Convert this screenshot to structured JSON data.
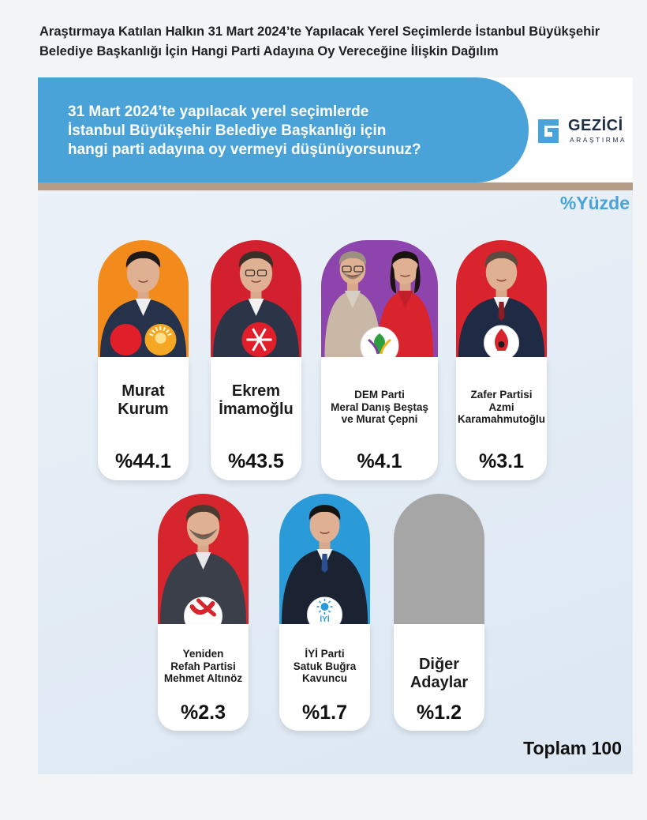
{
  "title": {
    "line1": "Araştırmaya Katılan Halkın 31 Mart 2024’te Yapılacak Yerel Seçimlerde İstanbul Büyükşehir",
    "line2": "Belediye Başkanlığı İçin Hangi Parti Adayına Oy Vereceğine İlişkin Dağılım"
  },
  "question": {
    "line1": "31 Mart 2024’te yapılacak yerel seçimlerde",
    "line2": "İstanbul Büyükşehir Belediye Başkanlığı için",
    "line3": "hangi parti adayına oy vermeyi düşünüyorsunuz?"
  },
  "logo": {
    "name": "GEZİCİ",
    "sub": "ARAŞTIRMA",
    "color": "#1f2f45",
    "icon": "gezici-logo-icon"
  },
  "unit_label": "%Yüzde",
  "total_label": "Toplam 100",
  "colors": {
    "banner": "#4aa3d8",
    "stripe": "#b49c86",
    "akp": "#f28a1c",
    "chp": "#d3202f",
    "dem": "#8e44ad",
    "zafer": "#d9232d",
    "yrp": "#d7252e",
    "iyi": "#2a9ad9",
    "other": "#a6a6a6"
  },
  "chart_data": {
    "type": "bar",
    "title": "31 Mart 2024’te yapılacak yerel seçimlerde İstanbul Büyükşehir Belediye Başkanlığı için hangi parti adayına oy vermeyi düşünüyorsunuz?",
    "unit": "%Yüzde",
    "total": "Toplam 100",
    "categories": [
      "Murat Kurum",
      "Ekrem İmamoğlu",
      "DEM Parti Meral Danış Beştaş ve Murat Çepni",
      "Zafer Partisi Azmi Karamahmutoğlu",
      "Yeniden Refah Partisi Mehmet Altınöz",
      "İYİ Parti Satuk Buğra Kavuncu",
      "Diğer Adaylar"
    ],
    "values": [
      44.1,
      43.5,
      4.1,
      3.1,
      2.3,
      1.7,
      1.2
    ],
    "value_labels": [
      "%44.1",
      "%43.5",
      "%4.1",
      "%3.1",
      "%2.3",
      "%1.7",
      "%1.2"
    ],
    "card_lines": [
      [
        "Murat",
        "Kurum"
      ],
      [
        "Ekrem",
        "İmamoğlu"
      ],
      [
        "DEM Parti",
        "Meral Danış Beştaş",
        "ve Murat Çepni"
      ],
      [
        "Zafer Partisi",
        "Azmi",
        "Karamahmutoğlu"
      ],
      [
        "Yeniden",
        "Refah Partisi",
        "Mehmet Altınöz"
      ],
      [
        "İYİ Parti",
        "Satuk Buğra",
        "Kavuncu"
      ],
      [
        "Diğer",
        "Adaylar"
      ]
    ],
    "card_colors": [
      "#f28a1c",
      "#d3202f",
      "#8e44ad",
      "#d9232d",
      "#d7252e",
      "#2a9ad9",
      "#a6a6a6"
    ],
    "party_icons": [
      "mhp-ak-parti-icons",
      "chp-six-arrows-icon",
      "dem-parti-leaf-icon",
      "zafer-partisi-flame-icon",
      "yeniden-refah-icon",
      "iyi-parti-sun-icon",
      ""
    ]
  }
}
